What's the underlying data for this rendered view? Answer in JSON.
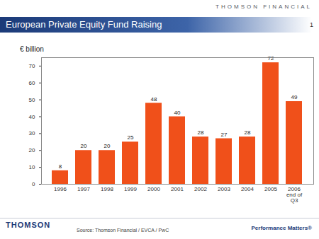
{
  "chart_data": {
    "type": "bar",
    "header": "THOMSON FINANCIAL",
    "title": "European Private Equity Fund Raising",
    "page_number": 1,
    "y_label": "€ billion",
    "categories": [
      "1996",
      "1997",
      "1998",
      "1999",
      "2000",
      "2001",
      "2002",
      "2003",
      "2004",
      "2005",
      "2006\nend of\nQ3"
    ],
    "values": [
      8,
      20,
      20,
      25,
      48,
      40,
      28,
      27,
      28,
      72,
      49
    ],
    "color": "#f0501a",
    "ylim": [
      0,
      75
    ],
    "yticks": [
      0,
      10,
      20,
      30,
      40,
      50,
      60,
      70
    ],
    "grid": false,
    "data_labels": true,
    "source": "Source: Thomson Financial / EVCA / PwC",
    "logo": "THOMSON",
    "tagline": "Performance Matters®"
  }
}
